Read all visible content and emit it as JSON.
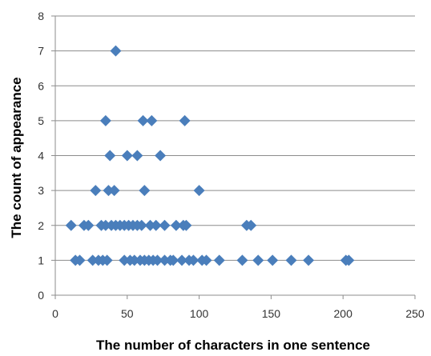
{
  "chart_data": {
    "type": "scatter",
    "xlabel": "The number of characters in one sentence",
    "ylabel": "The count of  appearance",
    "xlim": [
      0,
      250
    ],
    "ylim": [
      0,
      8
    ],
    "x_ticks": [
      0,
      50,
      100,
      150,
      200,
      250
    ],
    "y_ticks": [
      0,
      1,
      2,
      3,
      4,
      5,
      6,
      7,
      8
    ],
    "grid": "horizontal",
    "legend": "none",
    "marker": "diamond",
    "marker_color": "#4a7ebb",
    "series": [
      {
        "points": [
          [
            14,
            1
          ],
          [
            17,
            1
          ],
          [
            26,
            1
          ],
          [
            30,
            1
          ],
          [
            33,
            1
          ],
          [
            36,
            1
          ],
          [
            48,
            1
          ],
          [
            52,
            1
          ],
          [
            55,
            1
          ],
          [
            59,
            1
          ],
          [
            62,
            1
          ],
          [
            65,
            1
          ],
          [
            68,
            1
          ],
          [
            71,
            1
          ],
          [
            76,
            1
          ],
          [
            80,
            1
          ],
          [
            82,
            1
          ],
          [
            88,
            1
          ],
          [
            93,
            1
          ],
          [
            96,
            1
          ],
          [
            102,
            1
          ],
          [
            105,
            1
          ],
          [
            114,
            1
          ],
          [
            130,
            1
          ],
          [
            141,
            1
          ],
          [
            151,
            1
          ],
          [
            164,
            1
          ],
          [
            176,
            1
          ],
          [
            202,
            1
          ],
          [
            204,
            1
          ],
          [
            11,
            2
          ],
          [
            20,
            2
          ],
          [
            23,
            2
          ],
          [
            32,
            2
          ],
          [
            35,
            2
          ],
          [
            39,
            2
          ],
          [
            42,
            2
          ],
          [
            45,
            2
          ],
          [
            48,
            2
          ],
          [
            51,
            2
          ],
          [
            54,
            2
          ],
          [
            57,
            2
          ],
          [
            60,
            2
          ],
          [
            66,
            2
          ],
          [
            70,
            2
          ],
          [
            76,
            2
          ],
          [
            84,
            2
          ],
          [
            89,
            2
          ],
          [
            91,
            2
          ],
          [
            133,
            2
          ],
          [
            136,
            2
          ],
          [
            28,
            3
          ],
          [
            37,
            3
          ],
          [
            41,
            3
          ],
          [
            62,
            3
          ],
          [
            100,
            3
          ],
          [
            38,
            4
          ],
          [
            50,
            4
          ],
          [
            57,
            4
          ],
          [
            73,
            4
          ],
          [
            35,
            5
          ],
          [
            61,
            5
          ],
          [
            67,
            5
          ],
          [
            90,
            5
          ],
          [
            42,
            7
          ]
        ]
      }
    ]
  }
}
